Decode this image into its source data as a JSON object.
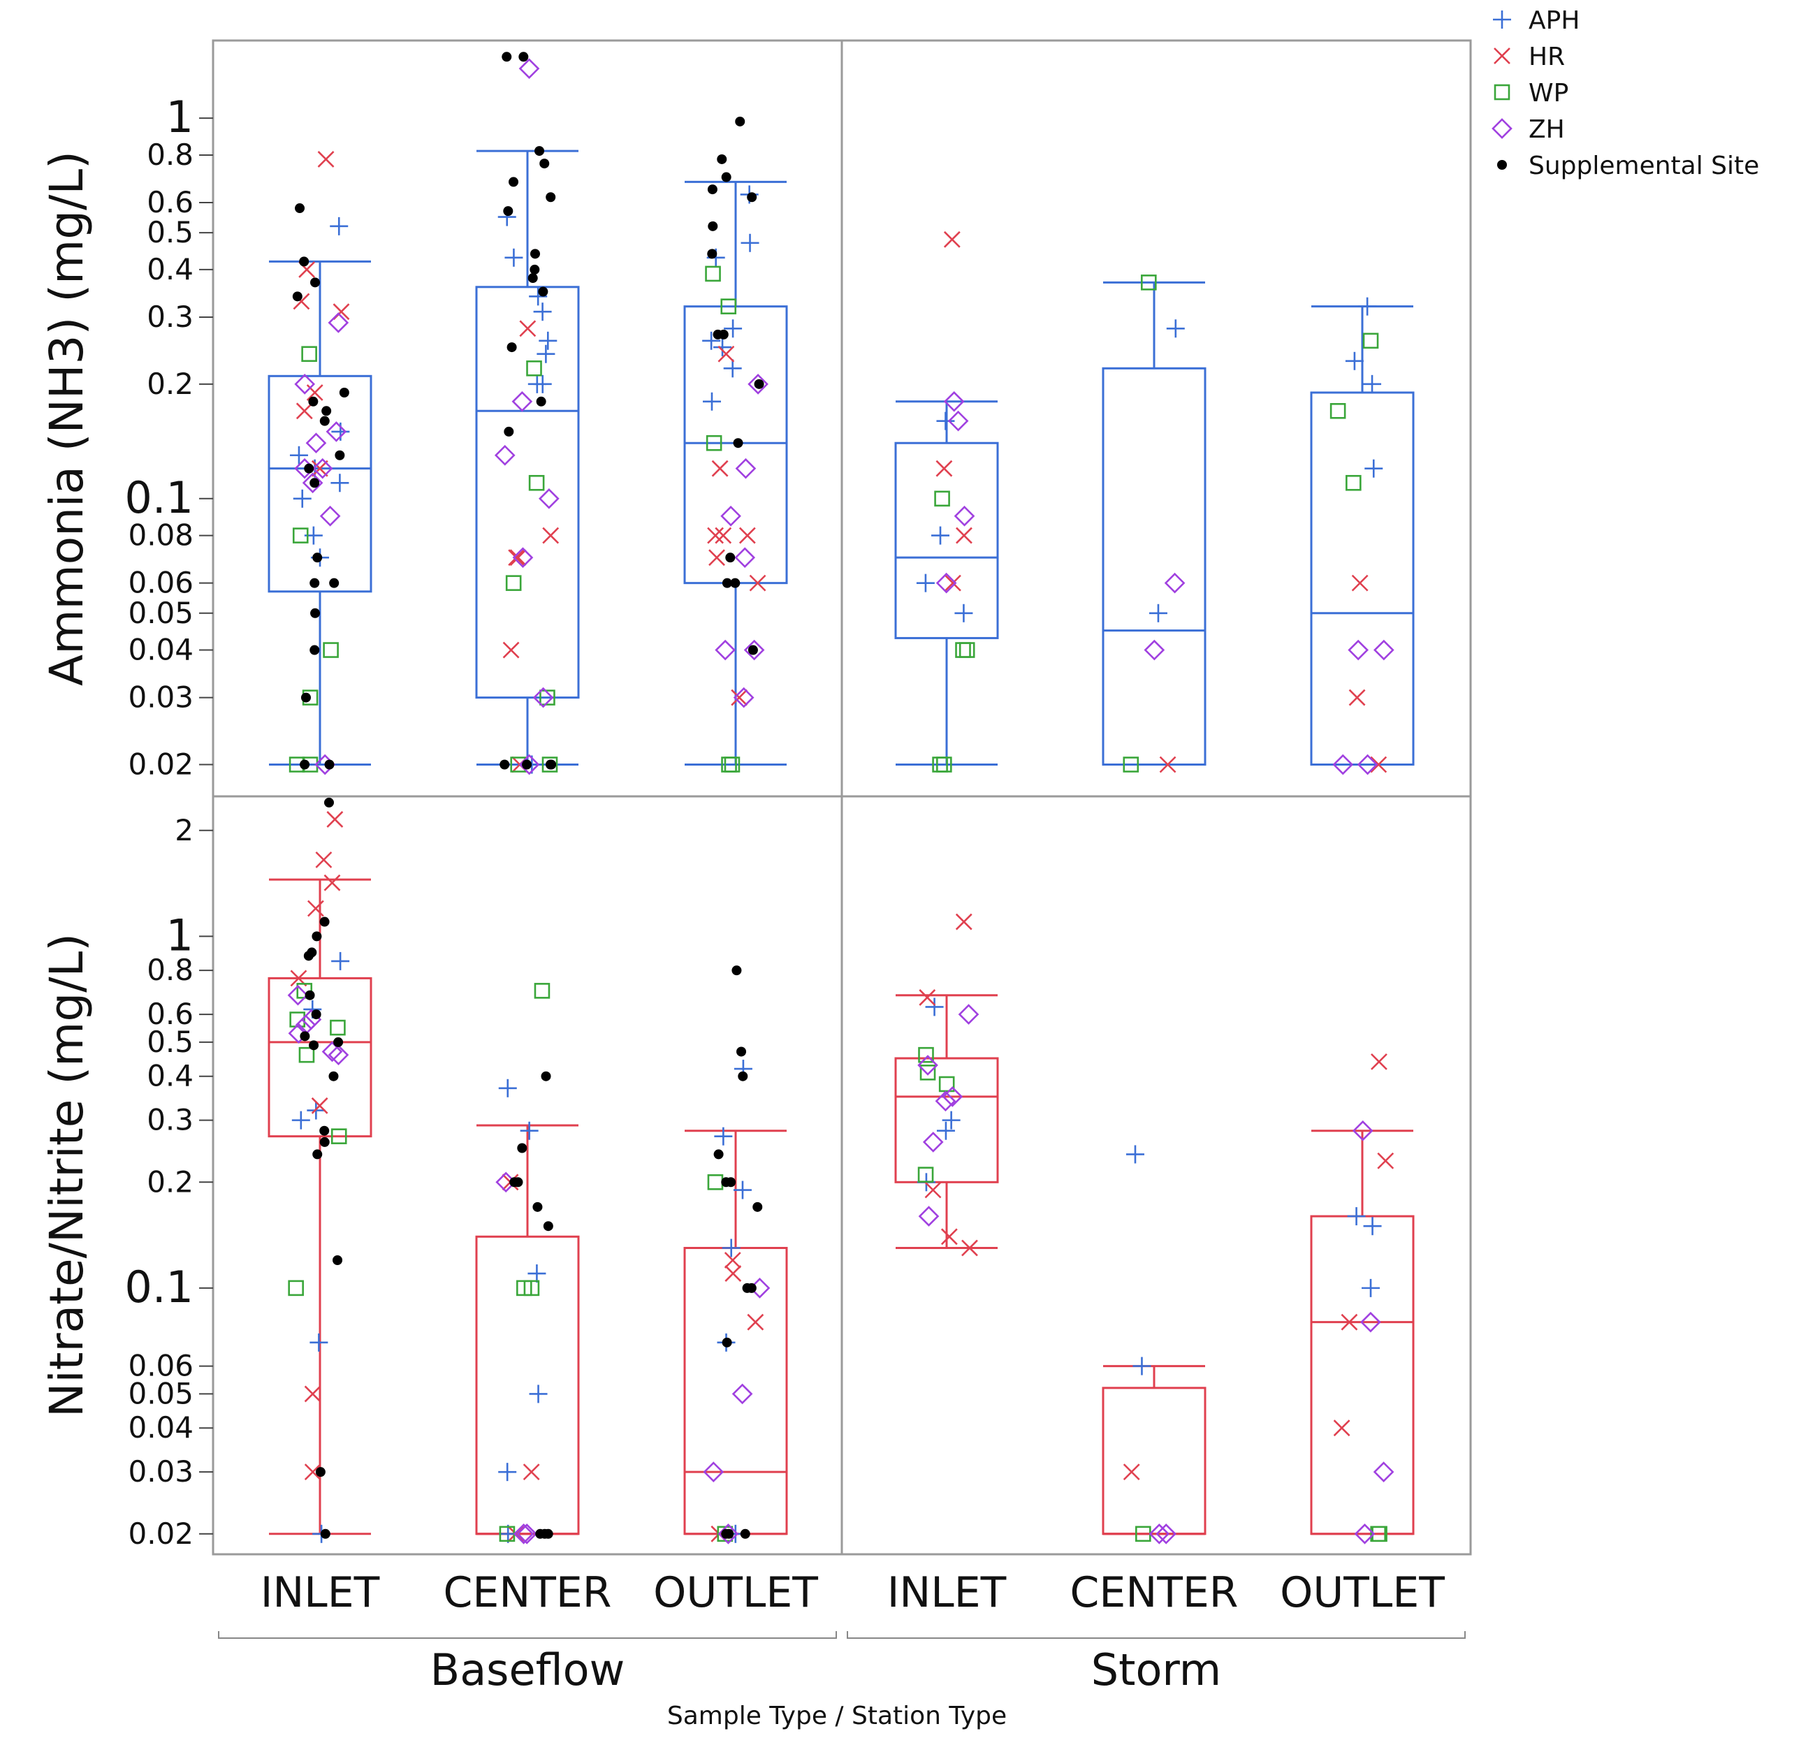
{
  "chart_data": {
    "type": "box",
    "scale": "log",
    "x_axis_title": "Sample Type / Station Type",
    "groups": [
      {
        "label": "Baseflow",
        "categories": [
          "INLET",
          "CENTER",
          "OUTLET"
        ]
      },
      {
        "label": "Storm",
        "categories": [
          "INLET",
          "CENTER",
          "OUTLET"
        ]
      }
    ],
    "legend": {
      "placement": "top-right",
      "entries": [
        {
          "label": "APH",
          "marker": "plus",
          "color": "#3b6fd6"
        },
        {
          "label": "HR",
          "marker": "x",
          "color": "#e0404f"
        },
        {
          "label": "WP",
          "marker": "square",
          "color": "#3aa63a"
        },
        {
          "label": "ZH",
          "marker": "diamond",
          "color": "#a040e0"
        },
        {
          "label": "Supplemental Site",
          "marker": "dot",
          "color": "#000000"
        }
      ]
    },
    "panels": [
      {
        "name": "ammonia",
        "ylabel": "Ammonia (NH3) (mg/L)",
        "box_color": "#3b6fd6",
        "ylim": [
          0.0165,
          1.6
        ],
        "ticks": [
          {
            "v": 1,
            "label": "1"
          },
          {
            "v": 0.8,
            "label": "0.8"
          },
          {
            "v": 0.6,
            "label": "0.6"
          },
          {
            "v": 0.5,
            "label": "0.5"
          },
          {
            "v": 0.4,
            "label": "0.4"
          },
          {
            "v": 0.3,
            "label": "0.3"
          },
          {
            "v": 0.2,
            "label": "0.2"
          },
          {
            "v": 0.1,
            "label": "0.1"
          },
          {
            "v": 0.08,
            "label": "0.08"
          },
          {
            "v": 0.06,
            "label": "0.06"
          },
          {
            "v": 0.05,
            "label": "0.05"
          },
          {
            "v": 0.04,
            "label": "0.04"
          },
          {
            "v": 0.03,
            "label": "0.03"
          },
          {
            "v": 0.02,
            "label": "0.02"
          }
        ],
        "boxes": [
          {
            "group": 0,
            "cat": 0,
            "low": 0.02,
            "q1": 0.057,
            "median": 0.12,
            "q3": 0.21,
            "high": 0.42
          },
          {
            "group": 0,
            "cat": 1,
            "low": 0.02,
            "q1": 0.03,
            "median": 0.17,
            "q3": 0.36,
            "high": 0.82
          },
          {
            "group": 0,
            "cat": 2,
            "low": 0.02,
            "q1": 0.06,
            "median": 0.14,
            "q3": 0.32,
            "high": 0.68
          },
          {
            "group": 1,
            "cat": 0,
            "low": 0.02,
            "q1": 0.043,
            "median": 0.07,
            "q3": 0.14,
            "high": 0.18
          },
          {
            "group": 1,
            "cat": 1,
            "low": 0.02,
            "q1": 0.02,
            "median": 0.045,
            "q3": 0.22,
            "high": 0.37
          },
          {
            "group": 1,
            "cat": 2,
            "low": 0.02,
            "q1": 0.02,
            "median": 0.05,
            "q3": 0.19,
            "high": 0.32
          }
        ],
        "points": [
          {
            "group": 0,
            "cat": 0,
            "s": "APH",
            "v": [
              0.52,
              0.15,
              0.13,
              0.12,
              0.11,
              0.1,
              0.08,
              0.07
            ]
          },
          {
            "group": 0,
            "cat": 0,
            "s": "HR",
            "v": [
              0.78,
              0.4,
              0.33,
              0.31,
              0.19,
              0.17,
              0.12
            ]
          },
          {
            "group": 0,
            "cat": 0,
            "s": "WP",
            "v": [
              0.24,
              0.08,
              0.04,
              0.03,
              0.02,
              0.02
            ]
          },
          {
            "group": 0,
            "cat": 0,
            "s": "ZH",
            "v": [
              0.29,
              0.2,
              0.15,
              0.14,
              0.12,
              0.12,
              0.11,
              0.09,
              0.02
            ]
          },
          {
            "group": 0,
            "cat": 0,
            "s": "Supplemental Site",
            "v": [
              0.58,
              0.42,
              0.37,
              0.34,
              0.19,
              0.18,
              0.17,
              0.16,
              0.13,
              0.12,
              0.11,
              0.07,
              0.06,
              0.06,
              0.05,
              0.04,
              0.03,
              0.02,
              0.02
            ]
          },
          {
            "group": 0,
            "cat": 1,
            "s": "APH",
            "v": [
              0.55,
              0.43,
              0.34,
              0.31,
              0.26,
              0.24,
              0.2,
              0.2,
              0.02
            ]
          },
          {
            "group": 0,
            "cat": 1,
            "s": "HR",
            "v": [
              0.28,
              0.08,
              0.07,
              0.07,
              0.04,
              0.02
            ]
          },
          {
            "group": 0,
            "cat": 1,
            "s": "WP",
            "v": [
              0.22,
              0.11,
              0.06,
              0.03,
              0.02,
              0.02
            ]
          },
          {
            "group": 0,
            "cat": 1,
            "s": "ZH",
            "v": [
              1.35,
              0.18,
              0.13,
              0.1,
              0.07,
              0.03,
              0.02
            ]
          },
          {
            "group": 0,
            "cat": 1,
            "s": "Supplemental Site",
            "v": [
              1.45,
              1.45,
              0.82,
              0.76,
              0.68,
              0.62,
              0.57,
              0.44,
              0.4,
              0.38,
              0.35,
              0.25,
              0.18,
              0.15,
              0.02,
              0.02,
              0.02,
              0.02
            ]
          },
          {
            "group": 0,
            "cat": 2,
            "s": "APH",
            "v": [
              0.63,
              0.47,
              0.43,
              0.28,
              0.26,
              0.25,
              0.22,
              0.18
            ]
          },
          {
            "group": 0,
            "cat": 2,
            "s": "HR",
            "v": [
              0.24,
              0.12,
              0.08,
              0.08,
              0.08,
              0.07,
              0.06,
              0.03
            ]
          },
          {
            "group": 0,
            "cat": 2,
            "s": "WP",
            "v": [
              0.39,
              0.32,
              0.14,
              0.02,
              0.02
            ]
          },
          {
            "group": 0,
            "cat": 2,
            "s": "ZH",
            "v": [
              0.2,
              0.12,
              0.09,
              0.07,
              0.04,
              0.04,
              0.03
            ]
          },
          {
            "group": 0,
            "cat": 2,
            "s": "Supplemental Site",
            "v": [
              0.98,
              0.78,
              0.7,
              0.65,
              0.62,
              0.52,
              0.44,
              0.27,
              0.27,
              0.2,
              0.14,
              0.07,
              0.06,
              0.06,
              0.04
            ]
          },
          {
            "group": 1,
            "cat": 0,
            "s": "APH",
            "v": [
              0.16,
              0.08,
              0.06,
              0.05
            ]
          },
          {
            "group": 1,
            "cat": 0,
            "s": "HR",
            "v": [
              0.48,
              0.12,
              0.08,
              0.06
            ]
          },
          {
            "group": 1,
            "cat": 0,
            "s": "WP",
            "v": [
              0.1,
              0.04,
              0.04,
              0.02,
              0.02
            ]
          },
          {
            "group": 1,
            "cat": 0,
            "s": "ZH",
            "v": [
              0.18,
              0.16,
              0.09,
              0.06
            ]
          },
          {
            "group": 1,
            "cat": 1,
            "s": "APH",
            "v": [
              0.28,
              0.05
            ]
          },
          {
            "group": 1,
            "cat": 1,
            "s": "HR",
            "v": [
              0.02
            ]
          },
          {
            "group": 1,
            "cat": 1,
            "s": "WP",
            "v": [
              0.37,
              0.02
            ]
          },
          {
            "group": 1,
            "cat": 1,
            "s": "ZH",
            "v": [
              0.06,
              0.04
            ]
          },
          {
            "group": 1,
            "cat": 2,
            "s": "APH",
            "v": [
              0.32,
              0.23,
              0.2,
              0.12
            ]
          },
          {
            "group": 1,
            "cat": 2,
            "s": "HR",
            "v": [
              0.06,
              0.03,
              0.02
            ]
          },
          {
            "group": 1,
            "cat": 2,
            "s": "WP",
            "v": [
              0.26,
              0.17,
              0.11
            ]
          },
          {
            "group": 1,
            "cat": 2,
            "s": "ZH",
            "v": [
              0.04,
              0.04,
              0.02,
              0.02
            ]
          }
        ]
      },
      {
        "name": "nitrate",
        "ylabel": "Nitrate/Nitrite (mg/L)",
        "box_color": "#e0404f",
        "ylim": [
          0.0175,
          2.5
        ],
        "ticks": [
          {
            "v": 2,
            "label": "2"
          },
          {
            "v": 1,
            "label": "1"
          },
          {
            "v": 0.8,
            "label": "0.8"
          },
          {
            "v": 0.6,
            "label": "0.6"
          },
          {
            "v": 0.5,
            "label": "0.5"
          },
          {
            "v": 0.4,
            "label": "0.4"
          },
          {
            "v": 0.3,
            "label": "0.3"
          },
          {
            "v": 0.2,
            "label": "0.2"
          },
          {
            "v": 0.1,
            "label": "0.1"
          },
          {
            "v": 0.06,
            "label": "0.06"
          },
          {
            "v": 0.05,
            "label": "0.05"
          },
          {
            "v": 0.04,
            "label": "0.04"
          },
          {
            "v": 0.03,
            "label": "0.03"
          },
          {
            "v": 0.02,
            "label": "0.02"
          }
        ],
        "boxes": [
          {
            "group": 0,
            "cat": 0,
            "low": 0.02,
            "q1": 0.27,
            "median": 0.5,
            "q3": 0.76,
            "high": 1.45
          },
          {
            "group": 0,
            "cat": 1,
            "low": 0.02,
            "q1": 0.02,
            "median": 0.02,
            "q3": 0.14,
            "high": 0.29
          },
          {
            "group": 0,
            "cat": 2,
            "low": 0.02,
            "q1": 0.02,
            "median": 0.03,
            "q3": 0.13,
            "high": 0.28
          },
          {
            "group": 1,
            "cat": 0,
            "low": 0.13,
            "q1": 0.2,
            "median": 0.35,
            "q3": 0.45,
            "high": 0.68
          },
          {
            "group": 1,
            "cat": 1,
            "low": 0.02,
            "q1": 0.02,
            "median": 0.02,
            "q3": 0.052,
            "high": 0.06
          },
          {
            "group": 1,
            "cat": 2,
            "low": 0.02,
            "q1": 0.02,
            "median": 0.08,
            "q3": 0.16,
            "high": 0.28
          }
        ],
        "points": [
          {
            "group": 0,
            "cat": 0,
            "s": "APH",
            "v": [
              0.85,
              0.62,
              0.32,
              0.3,
              0.07,
              0.02
            ]
          },
          {
            "group": 0,
            "cat": 0,
            "s": "HR",
            "v": [
              2.15,
              1.65,
              1.42,
              1.2,
              0.76,
              0.33,
              0.05,
              0.03
            ]
          },
          {
            "group": 0,
            "cat": 0,
            "s": "WP",
            "v": [
              0.7,
              0.58,
              0.55,
              0.46,
              0.27,
              0.1
            ]
          },
          {
            "group": 0,
            "cat": 0,
            "s": "ZH",
            "v": [
              0.68,
              0.58,
              0.56,
              0.53,
              0.47,
              0.46
            ]
          },
          {
            "group": 0,
            "cat": 0,
            "s": "Supplemental Site",
            "v": [
              2.4,
              1.1,
              1.0,
              0.9,
              0.88,
              0.68,
              0.6,
              0.52,
              0.5,
              0.49,
              0.4,
              0.28,
              0.26,
              0.24,
              0.12,
              0.03,
              0.02
            ]
          },
          {
            "group": 0,
            "cat": 1,
            "s": "APH",
            "v": [
              0.37,
              0.28,
              0.11,
              0.05,
              0.03,
              0.02
            ]
          },
          {
            "group": 0,
            "cat": 1,
            "s": "HR",
            "v": [
              0.2,
              0.03,
              0.02
            ]
          },
          {
            "group": 0,
            "cat": 1,
            "s": "WP",
            "v": [
              0.7,
              0.1,
              0.1,
              0.02
            ]
          },
          {
            "group": 0,
            "cat": 1,
            "s": "ZH",
            "v": [
              0.2,
              0.02,
              0.02
            ]
          },
          {
            "group": 0,
            "cat": 1,
            "s": "Supplemental Site",
            "v": [
              0.4,
              0.25,
              0.2,
              0.2,
              0.17,
              0.15,
              0.02,
              0.02,
              0.02
            ]
          },
          {
            "group": 0,
            "cat": 2,
            "s": "APH",
            "v": [
              0.42,
              0.27,
              0.19,
              0.13,
              0.07,
              0.02
            ]
          },
          {
            "group": 0,
            "cat": 2,
            "s": "HR",
            "v": [
              0.12,
              0.11,
              0.08,
              0.02
            ]
          },
          {
            "group": 0,
            "cat": 2,
            "s": "WP",
            "v": [
              0.2,
              0.02
            ]
          },
          {
            "group": 0,
            "cat": 2,
            "s": "ZH",
            "v": [
              0.1,
              0.05,
              0.03,
              0.02
            ]
          },
          {
            "group": 0,
            "cat": 2,
            "s": "Supplemental Site",
            "v": [
              0.8,
              0.47,
              0.4,
              0.24,
              0.2,
              0.2,
              0.17,
              0.1,
              0.1,
              0.07,
              0.02,
              0.02,
              0.02
            ]
          },
          {
            "group": 1,
            "cat": 0,
            "s": "APH",
            "v": [
              0.63,
              0.3,
              0.28,
              0.2
            ]
          },
          {
            "group": 1,
            "cat": 0,
            "s": "HR",
            "v": [
              1.1,
              0.67,
              0.19,
              0.14,
              0.13
            ]
          },
          {
            "group": 1,
            "cat": 0,
            "s": "WP",
            "v": [
              0.46,
              0.41,
              0.38,
              0.21
            ]
          },
          {
            "group": 1,
            "cat": 0,
            "s": "ZH",
            "v": [
              0.6,
              0.43,
              0.35,
              0.34,
              0.26,
              0.16
            ]
          },
          {
            "group": 1,
            "cat": 1,
            "s": "APH",
            "v": [
              0.24,
              0.06
            ]
          },
          {
            "group": 1,
            "cat": 1,
            "s": "HR",
            "v": [
              0.03
            ]
          },
          {
            "group": 1,
            "cat": 1,
            "s": "WP",
            "v": [
              0.02
            ]
          },
          {
            "group": 1,
            "cat": 1,
            "s": "ZH",
            "v": [
              0.02,
              0.02
            ]
          },
          {
            "group": 1,
            "cat": 2,
            "s": "APH",
            "v": [
              0.16,
              0.15,
              0.1
            ]
          },
          {
            "group": 1,
            "cat": 2,
            "s": "HR",
            "v": [
              0.44,
              0.23,
              0.08,
              0.04
            ]
          },
          {
            "group": 1,
            "cat": 2,
            "s": "WP",
            "v": [
              0.02,
              0.02
            ]
          },
          {
            "group": 1,
            "cat": 2,
            "s": "ZH",
            "v": [
              0.28,
              0.08,
              0.03,
              0.02
            ]
          }
        ]
      }
    ]
  }
}
